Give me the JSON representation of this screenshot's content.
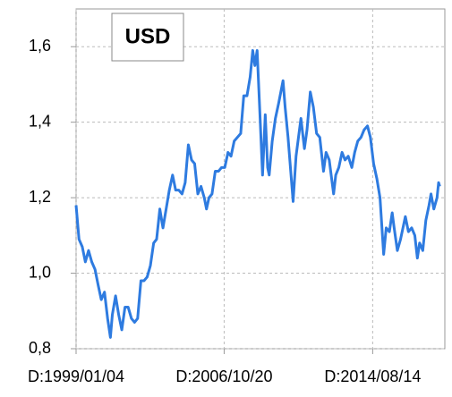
{
  "chart_data": {
    "type": "line",
    "title": "USD",
    "x": [
      "1999/01/04",
      "1999/03/01",
      "1999/05/03",
      "1999/07/01",
      "1999/09/01",
      "1999/11/01",
      "2000/01/03",
      "2000/03/01",
      "2000/05/02",
      "2000/07/03",
      "2000/09/01",
      "2000/10/25",
      "2000/12/01",
      "2001/02/01",
      "2001/04/02",
      "2001/06/01",
      "2001/08/01",
      "2001/10/01",
      "2001/12/03",
      "2002/02/01",
      "2002/04/01",
      "2002/06/03",
      "2002/08/01",
      "2002/10/01",
      "2002/12/02",
      "2003/02/03",
      "2003/04/01",
      "2003/06/02",
      "2003/08/01",
      "2003/10/01",
      "2003/12/01",
      "2004/02/02",
      "2004/04/01",
      "2004/06/01",
      "2004/08/02",
      "2004/10/01",
      "2004/12/01",
      "2005/02/01",
      "2005/04/01",
      "2005/06/01",
      "2005/08/01",
      "2005/10/03",
      "2005/11/15",
      "2006/01/02",
      "2006/03/01",
      "2006/05/02",
      "2006/07/03",
      "2006/09/01",
      "2006/11/01",
      "2007/01/02",
      "2007/03/01",
      "2007/05/01",
      "2007/07/02",
      "2007/09/03",
      "2007/11/01",
      "2008/01/02",
      "2008/03/03",
      "2008/04/22",
      "2008/06/02",
      "2008/07/15",
      "2008/09/01",
      "2008/10/27",
      "2008/12/18",
      "2009/02/02",
      "2009/03/04",
      "2009/05/01",
      "2009/07/01",
      "2009/09/01",
      "2009/11/25",
      "2010/01/04",
      "2010/03/01",
      "2010/06/07",
      "2010/08/02",
      "2010/11/04",
      "2011/01/10",
      "2011/03/01",
      "2011/05/03",
      "2011/07/01",
      "2011/09/01",
      "2011/11/01",
      "2012/01/12",
      "2012/03/01",
      "2012/05/01",
      "2012/07/24",
      "2012/09/03",
      "2012/11/01",
      "2013/01/02",
      "2013/03/01",
      "2013/05/01",
      "2013/07/09",
      "2013/09/02",
      "2013/11/01",
      "2014/01/02",
      "2014/03/03",
      "2014/05/06",
      "2014/07/01",
      "2014/09/01",
      "2014/11/03",
      "2015/01/02",
      "2015/03/13",
      "2015/05/01",
      "2015/07/01",
      "2015/08/24",
      "2015/10/01",
      "2015/12/01",
      "2016/02/01",
      "2016/05/03",
      "2016/07/01",
      "2016/09/01",
      "2016/11/01",
      "2016/12/20",
      "2017/02/01",
      "2017/04/03",
      "2017/06/01",
      "2017/08/01",
      "2017/09/08",
      "2017/11/01",
      "2018/01/02",
      "2018/02/01",
      "2018/02/23"
    ],
    "values": [
      1.18,
      1.09,
      1.07,
      1.03,
      1.06,
      1.03,
      1.01,
      0.97,
      0.93,
      0.95,
      0.88,
      0.83,
      0.89,
      0.94,
      0.89,
      0.85,
      0.91,
      0.91,
      0.88,
      0.87,
      0.88,
      0.98,
      0.98,
      0.99,
      1.02,
      1.08,
      1.09,
      1.17,
      1.12,
      1.17,
      1.22,
      1.26,
      1.22,
      1.22,
      1.21,
      1.24,
      1.34,
      1.3,
      1.29,
      1.21,
      1.23,
      1.2,
      1.17,
      1.2,
      1.21,
      1.27,
      1.27,
      1.28,
      1.28,
      1.32,
      1.31,
      1.35,
      1.36,
      1.37,
      1.47,
      1.47,
      1.52,
      1.59,
      1.55,
      1.59,
      1.44,
      1.26,
      1.42,
      1.28,
      1.26,
      1.35,
      1.41,
      1.45,
      1.51,
      1.44,
      1.36,
      1.19,
      1.31,
      1.41,
      1.33,
      1.38,
      1.48,
      1.44,
      1.37,
      1.36,
      1.27,
      1.32,
      1.3,
      1.21,
      1.26,
      1.28,
      1.32,
      1.3,
      1.31,
      1.28,
      1.32,
      1.35,
      1.36,
      1.38,
      1.39,
      1.36,
      1.29,
      1.25,
      1.2,
      1.05,
      1.12,
      1.11,
      1.16,
      1.12,
      1.06,
      1.09,
      1.15,
      1.11,
      1.12,
      1.1,
      1.04,
      1.08,
      1.06,
      1.14,
      1.18,
      1.21,
      1.17,
      1.2,
      1.24,
      1.23
    ],
    "color": "#2e7be0",
    "xlim": [
      "1999/01/04",
      "2018/06/01"
    ],
    "xticks": [
      {
        "value": "1999/01/04",
        "label": "D:1999/01/04"
      },
      {
        "value": "2006/10/20",
        "label": "D:2006/10/20"
      },
      {
        "value": "2014/08/14",
        "label": "D:2014/08/14"
      }
    ],
    "ylim": [
      0.8,
      1.7
    ],
    "yticks": [
      {
        "value": 0.8,
        "label": "0,8"
      },
      {
        "value": 1.0,
        "label": "1,0"
      },
      {
        "value": 1.2,
        "label": "1,2"
      },
      {
        "value": 1.4,
        "label": "1,4"
      },
      {
        "value": 1.6,
        "label": "1,6"
      }
    ],
    "grid": true
  }
}
